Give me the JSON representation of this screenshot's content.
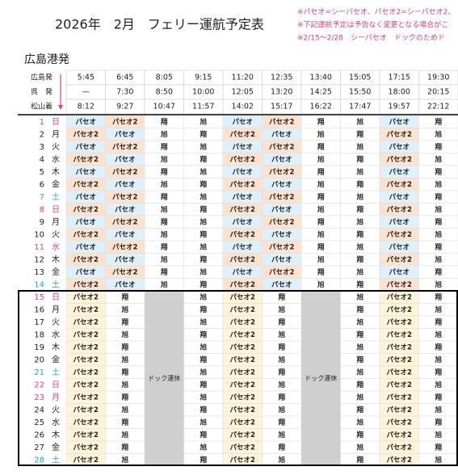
{
  "header": {
    "title": "2026年　2月　フェリー運航予定表",
    "notes": [
      "※パセオ=シーパセオ、パセオ2=シーパセオ2、",
      "※下記運航予定は予告なく変更となる場合がこ",
      "※2/15～2/28　シーパセオ　ドックのためド"
    ]
  },
  "section": "広島港発",
  "departures": [
    {
      "label": "広島発",
      "times": [
        "5:45",
        "6:45",
        "8:05",
        "9:15",
        "11:20",
        "12:35",
        "13:40",
        "15:05",
        "17:15",
        "19:30"
      ]
    },
    {
      "label": "呉　発",
      "times": [
        "—",
        "7:30",
        "8:50",
        "10:00",
        "12:05",
        "13:20",
        "14:25",
        "15:50",
        "18:00",
        "20:15"
      ]
    },
    {
      "label": "松山着",
      "times": [
        "8:12",
        "9:27",
        "10:47",
        "11:57",
        "14:02",
        "15:17",
        "16:22",
        "17:47",
        "19:57",
        "22:12"
      ]
    }
  ],
  "blocks": [
    {
      "ship_colors": {
        "パセオ": "#dff0fa",
        "パセオ2": "#fde2cf"
      },
      "days": [
        {
          "day": 1,
          "weekday": "日",
          "color": "#e0407a",
          "ships": [
            "パセオ",
            "パセオ2",
            "翔",
            "旭",
            "パセオ",
            "パセオ2",
            "翔",
            "旭",
            "パセオ",
            "翔"
          ]
        },
        {
          "day": 2,
          "weekday": "月",
          "ships": [
            "パセオ2",
            "パセオ",
            "旭",
            "翔",
            "パセオ2",
            "パセオ",
            "旭",
            "翔",
            "パセオ2",
            "旭"
          ]
        },
        {
          "day": 3,
          "weekday": "火",
          "ships": [
            "パセオ",
            "パセオ2",
            "翔",
            "旭",
            "パセオ",
            "パセオ2",
            "翔",
            "旭",
            "パセオ",
            "翔"
          ]
        },
        {
          "day": 4,
          "weekday": "水",
          "ships": [
            "パセオ2",
            "パセオ",
            "旭",
            "翔",
            "パセオ2",
            "パセオ",
            "旭",
            "翔",
            "パセオ2",
            "旭"
          ]
        },
        {
          "day": 5,
          "weekday": "木",
          "ships": [
            "パセオ",
            "パセオ2",
            "翔",
            "旭",
            "パセオ",
            "パセオ2",
            "翔",
            "旭",
            "パセオ",
            "翔"
          ]
        },
        {
          "day": 6,
          "weekday": "金",
          "ships": [
            "パセオ2",
            "パセオ",
            "旭",
            "翔",
            "パセオ2",
            "パセオ",
            "旭",
            "翔",
            "パセオ2",
            "旭"
          ]
        },
        {
          "day": 7,
          "weekday": "土",
          "color": "#2aa0d8",
          "ships": [
            "パセオ",
            "パセオ2",
            "翔",
            "旭",
            "パセオ",
            "パセオ2",
            "翔",
            "旭",
            "パセオ",
            "翔"
          ]
        },
        {
          "day": 8,
          "weekday": "日",
          "color": "#e0407a",
          "ships": [
            "パセオ2",
            "パセオ",
            "旭",
            "翔",
            "パセオ2",
            "パセオ",
            "旭",
            "翔",
            "パセオ2",
            "旭"
          ]
        },
        {
          "day": 9,
          "weekday": "月",
          "ships": [
            "パセオ",
            "パセオ2",
            "翔",
            "旭",
            "パセオ",
            "パセオ2",
            "翔",
            "旭",
            "パセオ",
            "翔"
          ]
        },
        {
          "day": 10,
          "weekday": "火",
          "ships": [
            "パセオ2",
            "パセオ",
            "旭",
            "翔",
            "パセオ2",
            "パセオ",
            "旭",
            "翔",
            "パセオ2",
            "旭"
          ]
        },
        {
          "day": 11,
          "weekday": "水",
          "color": "#e0407a",
          "ships": [
            "パセオ",
            "パセオ2",
            "翔",
            "旭",
            "パセオ",
            "パセオ2",
            "翔",
            "旭",
            "パセオ",
            "翔"
          ]
        },
        {
          "day": 12,
          "weekday": "木",
          "ships": [
            "パセオ2",
            "パセオ",
            "旭",
            "翔",
            "パセオ2",
            "パセオ",
            "旭",
            "翔",
            "パセオ2",
            "旭"
          ]
        },
        {
          "day": 13,
          "weekday": "金",
          "ships": [
            "パセオ",
            "パセオ2",
            "翔",
            "旭",
            "パセオ",
            "パセオ2",
            "翔",
            "旭",
            "パセオ",
            "翔"
          ]
        },
        {
          "day": 14,
          "weekday": "土",
          "color": "#2aa0d8",
          "ships": [
            "パセオ2",
            "パセオ",
            "旭",
            "翔",
            "パセオ2",
            "パセオ",
            "旭",
            "翔",
            "パセオ2",
            "旭"
          ]
        }
      ]
    },
    {
      "ship_colors": {
        "パセオ2": "#fff3d9"
      },
      "dock_closures": [
        "ドック運休",
        "ドック運休"
      ],
      "days": [
        {
          "day": 15,
          "weekday": "日",
          "color": "#e0407a",
          "ships": [
            "パセオ2",
            "翔",
            null,
            "旭",
            "パセオ2",
            "翔",
            null,
            "旭",
            "パセオ2",
            "翔"
          ]
        },
        {
          "day": 16,
          "weekday": "月",
          "ships": [
            "パセオ2",
            "旭",
            null,
            "翔",
            "パセオ2",
            "旭",
            null,
            "翔",
            "パセオ2",
            "旭"
          ]
        },
        {
          "day": 17,
          "weekday": "火",
          "ships": [
            "パセオ2",
            "翔",
            null,
            "旭",
            "パセオ2",
            "翔",
            null,
            "旭",
            "パセオ2",
            "翔"
          ]
        },
        {
          "day": 18,
          "weekday": "水",
          "ships": [
            "パセオ2",
            "旭",
            null,
            "翔",
            "パセオ2",
            "旭",
            null,
            "翔",
            "パセオ2",
            "旭"
          ]
        },
        {
          "day": 19,
          "weekday": "木",
          "ships": [
            "パセオ2",
            "翔",
            null,
            "旭",
            "パセオ2",
            "翔",
            null,
            "旭",
            "パセオ2",
            "翔"
          ]
        },
        {
          "day": 20,
          "weekday": "金",
          "ships": [
            "パセオ2",
            "旭",
            null,
            "翔",
            "パセオ2",
            "旭",
            null,
            "翔",
            "パセオ2",
            "旭"
          ]
        },
        {
          "day": 21,
          "weekday": "土",
          "color": "#2aa0d8",
          "ships": [
            "パセオ2",
            "翔",
            null,
            "旭",
            "パセオ2",
            "翔",
            null,
            "旭",
            "パセオ2",
            "翔"
          ]
        },
        {
          "day": 22,
          "weekday": "日",
          "color": "#e0407a",
          "ships": [
            "パセオ2",
            "旭",
            null,
            "翔",
            "パセオ2",
            "旭",
            null,
            "翔",
            "パセオ2",
            "旭"
          ]
        },
        {
          "day": 23,
          "weekday": "月",
          "color": "#e0407a",
          "ships": [
            "パセオ2",
            "翔",
            null,
            "旭",
            "パセオ2",
            "翔",
            null,
            "旭",
            "パセオ2",
            "翔"
          ]
        },
        {
          "day": 24,
          "weekday": "火",
          "ships": [
            "パセオ2",
            "旭",
            null,
            "翔",
            "パセオ2",
            "旭",
            null,
            "翔",
            "パセオ2",
            "旭"
          ]
        },
        {
          "day": 25,
          "weekday": "水",
          "ships": [
            "パセオ2",
            "翔",
            null,
            "旭",
            "パセオ2",
            "翔",
            null,
            "旭",
            "パセオ2",
            "翔"
          ]
        },
        {
          "day": 26,
          "weekday": "木",
          "ships": [
            "パセオ2",
            "旭",
            null,
            "翔",
            "パセオ2",
            "旭",
            null,
            "翔",
            "パセオ2",
            "旭"
          ]
        },
        {
          "day": 27,
          "weekday": "金",
          "ships": [
            "パセオ2",
            "翔",
            null,
            "旭",
            "パセオ2",
            "翔",
            null,
            "旭",
            "パセオ2",
            "翔"
          ]
        },
        {
          "day": 28,
          "weekday": "土",
          "color": "#2aa0d8",
          "ships": [
            "パセオ2",
            "旭",
            null,
            "翔",
            "パセオ2",
            "旭",
            null,
            "翔",
            "パセオ2",
            "旭"
          ]
        }
      ]
    }
  ]
}
